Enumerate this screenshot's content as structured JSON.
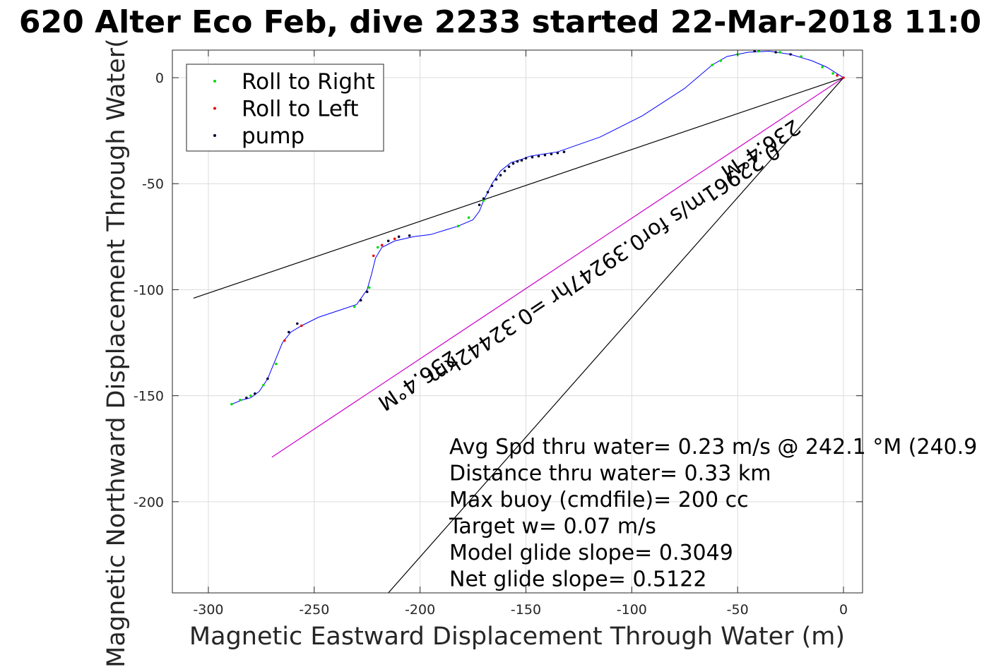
{
  "chart_data": {
    "type": "line",
    "title": "620 Alter Eco Feb, dive 2233 started 22-Mar-2018 11:0",
    "xlabel": "Magnetic Eastward Displacement Through Water (m)",
    "ylabel": "Magnetic Northward Displacement Through Water(",
    "xlim": [
      -317,
      9
    ],
    "ylim": [
      -243,
      13
    ],
    "xticks": [
      -300,
      -250,
      -200,
      -150,
      -100,
      -50,
      0
    ],
    "yticks": [
      0,
      -50,
      -100,
      -150,
      -200
    ],
    "grid": true,
    "legend": {
      "placement": "top-left",
      "entries": [
        {
          "label": "Roll to Right",
          "color": "#00dd00"
        },
        {
          "label": "Roll to Left",
          "color": "#ee0000"
        },
        {
          "label": "pump",
          "color": "#000033"
        }
      ]
    },
    "track": {
      "color": "#0000ff",
      "x": [
        0,
        -8,
        -15,
        -25,
        -35,
        -45,
        -55,
        -62,
        -75,
        -95,
        -115,
        -135,
        -148,
        -152,
        -157,
        -162,
        -166,
        -170,
        -172,
        -175,
        -182,
        -195,
        -203,
        -212,
        -218,
        -221,
        -223,
        -225,
        -230,
        -236,
        -248,
        -256,
        -261,
        -265,
        -272,
        -276,
        -280,
        -284,
        -289
      ],
      "y": [
        0,
        5,
        8,
        11,
        12.5,
        12,
        10,
        6,
        -5,
        -18,
        -28,
        -35,
        -37,
        -38.5,
        -40,
        -44,
        -50,
        -58,
        -63,
        -67,
        -70,
        -74,
        -75,
        -77,
        -80,
        -85,
        -93,
        -100,
        -107,
        -109,
        -113,
        -117,
        -120,
        -125,
        -142,
        -148,
        -151,
        -152,
        -154
      ]
    },
    "roll_right_x": [
      -5,
      -10,
      -20,
      -30,
      -40,
      -50,
      -58,
      -62,
      -170,
      -177,
      -182,
      -220,
      -224,
      -231,
      -268,
      -274,
      -280,
      -285,
      -289
    ],
    "roll_right_y": [
      2,
      5,
      10,
      12,
      12.5,
      11,
      8,
      6,
      -58,
      -66,
      -70,
      -80,
      -99,
      -108,
      -135,
      -145,
      -150,
      -152,
      -154
    ],
    "roll_left_x": [
      0,
      -3,
      -212,
      -218,
      -222,
      -256,
      -264
    ],
    "roll_left_y": [
      0,
      1,
      -76,
      -79,
      -84,
      -117,
      -124
    ],
    "pump_x": [
      -132,
      -135,
      -138,
      -141,
      -144,
      -147,
      -150,
      -152,
      -154,
      -156,
      -158,
      -160,
      -162,
      -164,
      -166,
      -168,
      -170,
      -172,
      -25,
      -32,
      -42,
      -205,
      -210,
      -215,
      -225,
      -228,
      -258,
      -262,
      -272,
      -278,
      -282
    ],
    "pump_y": [
      -35,
      -35.5,
      -36,
      -36.5,
      -37,
      -37.5,
      -38,
      -39,
      -39.5,
      -40.5,
      -42,
      -44,
      -46,
      -48,
      -51,
      -54,
      -57,
      -60,
      11,
      12,
      12.5,
      -74.5,
      -75,
      -77,
      -101,
      -105,
      -116,
      -120,
      -142,
      -149,
      -151
    ],
    "reference_lines": [
      {
        "color": "#000000",
        "x": [
          -307,
          0
        ],
        "y": [
          -104,
          0
        ]
      },
      {
        "color": "#cc00cc",
        "x": [
          -270,
          0
        ],
        "y": [
          -179,
          0
        ]
      },
      {
        "color": "#000000",
        "x": [
          -215,
          0
        ],
        "y": [
          -243,
          0
        ]
      }
    ],
    "rotated_labels": [
      {
        "text": "236.4°M",
        "x": -203,
        "y": -140,
        "angle_deg": 146.4
      },
      {
        "text": "0.22961m/s for0.39247hr =0.32442km",
        "x": -115,
        "y": -85,
        "angle_deg": 146.4
      },
      {
        "text": "236.4°M",
        "x": -41,
        "y": -31,
        "angle_deg": 146.4
      }
    ],
    "annotations": [
      "Avg Spd thru water=  0.23 m/s @ 242.1 °M (240.9",
      "Distance thru water=  0.33 km",
      "Max buoy (cmdfile)= 200 cc",
      "Target w= 0.07 m/s",
      "Model glide slope= 0.3049",
      "Net glide slope= 0.5122"
    ]
  }
}
